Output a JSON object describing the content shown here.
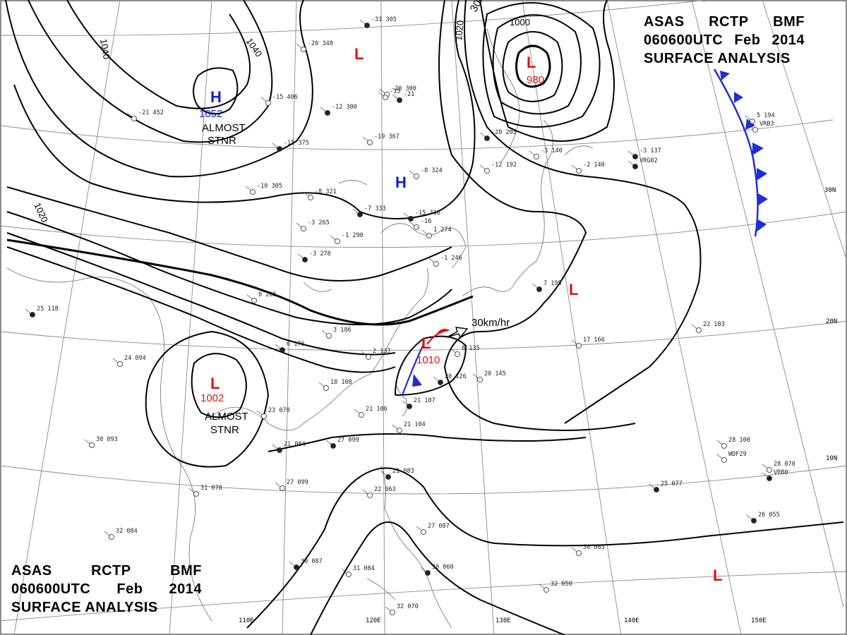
{
  "header": {
    "line1": [
      "ASAS",
      "RCTP",
      "BMF"
    ],
    "line2": [
      "060600UTC",
      "Feb",
      "2014"
    ],
    "line3": "SURFACE ANALYSIS"
  },
  "pressure_centers": [
    {
      "type": "H",
      "value": "1052",
      "note_1": "ALMOST",
      "note_2": "STNR"
    },
    {
      "type": "H",
      "value": "",
      "note_1": "",
      "note_2": ""
    },
    {
      "type": "L",
      "value": "",
      "note_1": "",
      "note_2": ""
    },
    {
      "type": "L",
      "value": "980",
      "note_1": "",
      "note_2": ""
    },
    {
      "type": "L",
      "value": "1010",
      "note_1": "",
      "note_2": ""
    },
    {
      "type": "L",
      "value": "1002",
      "note_1": "ALMOST",
      "note_2": "STNR"
    },
    {
      "type": "L",
      "value": "",
      "note_1": "",
      "note_2": ""
    },
    {
      "type": "L",
      "value": "",
      "note_1": "",
      "note_2": ""
    }
  ],
  "isobar_labels": [
    "1040",
    "1040",
    "1020",
    "1020",
    "1000"
  ],
  "motion_labels": [
    "30km/hr",
    "30km/hr"
  ],
  "longitude_labels": [
    "110E",
    "120E",
    "130E",
    "140E",
    "150E"
  ],
  "latitude_labels": [
    "30N",
    "20N",
    "10N"
  ],
  "stations": [
    "-31 305",
    "-20 348",
    "-20 300",
    "-12 300",
    "-19 367",
    "-15",
    "-21",
    "-15 406",
    "-21 452",
    "-15 375",
    "-10 305",
    "-8 321",
    "-7 333",
    "-3 265",
    "-1 290",
    "-3 278",
    "1 274",
    "-1 246",
    "-15 318",
    "-16",
    "-8 324",
    "-20 205",
    "-12 192",
    "-3 140",
    "-3 137",
    "-2 140",
    "5 194",
    "7 195",
    "0 205",
    "3 186",
    "6 176",
    "2 137",
    "8 135",
    "20 126",
    "20 145",
    "18 108",
    "21 107",
    "21 106",
    "21 104",
    "27 099",
    "27 099",
    "23 070",
    "21 084",
    "31 078",
    "24 094",
    "25 118",
    "30 093",
    "32 084",
    "30 087",
    "31 084",
    "32 070",
    "30 060",
    "30 065",
    "32 050",
    "26 055",
    "28 070",
    "28 100",
    "25 077",
    "22 103",
    "17 166",
    "21 083",
    "22 063",
    "27 087",
    "VRG02",
    "VRB3",
    "WDF29",
    "VRB0"
  ],
  "colors": {
    "high": "#1020d0",
    "low": "#e01010",
    "cold_front": "#1f2ed8",
    "warm_front": "#e01010",
    "isobar": "#000000",
    "grid": "#888888",
    "coast": "#666666"
  }
}
